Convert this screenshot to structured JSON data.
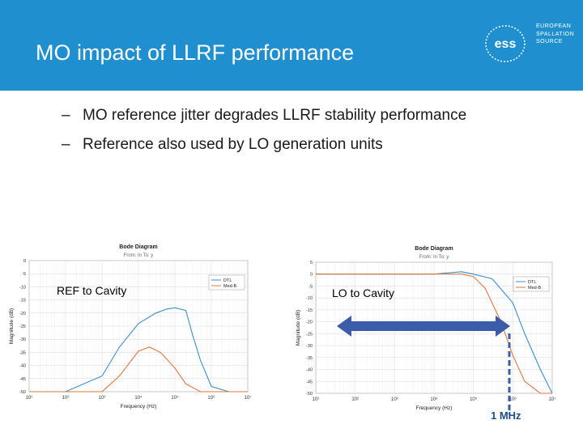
{
  "slide": {
    "title": "MO impact of LLRF performance",
    "logo_lines": [
      "EUROPEAN",
      "SPALLATION",
      "SOURCE"
    ],
    "logo_mark": "ess",
    "bullets": [
      "MO reference jitter degrades LLRF stability performance",
      "Reference also used by LO generation units"
    ],
    "bullet_marker": "–",
    "marker_label": "1 MHz"
  },
  "plots": [
    {
      "title": "Bode Diagram",
      "subtitle": "From: In  To: y",
      "ylabel": "Magnitude (dB)",
      "xlabel": "Frequency (Hz)",
      "annotation": "REF to Cavity",
      "legend": [
        "DTL",
        "Med-B"
      ],
      "yticks": [
        "0",
        "-5",
        "-10",
        "-15",
        "-20",
        "-25",
        "-30",
        "-35",
        "-40",
        "-45",
        "-50"
      ],
      "xticks": [
        "10¹",
        "10²",
        "10³",
        "10⁴",
        "10⁵",
        "10⁶",
        "10⁷"
      ]
    },
    {
      "title": "Bode Diagram",
      "subtitle": "From: In  To: y",
      "ylabel": "Magnitude (dB)",
      "xlabel": "Frequency (Hz)",
      "annotation": "LO to Cavity",
      "legend": [
        "DTL",
        "Med-B"
      ],
      "yticks": [
        "5",
        "0",
        "-5",
        "-10",
        "-15",
        "-20",
        "-25",
        "-30",
        "-35",
        "-40",
        "-45",
        "-50"
      ],
      "xticks": [
        "10¹",
        "10²",
        "10³",
        "10⁴",
        "10⁵",
        "10⁶",
        "10⁷"
      ]
    }
  ],
  "chart_data": [
    {
      "type": "line",
      "title": "Bode Diagram",
      "xlabel": "Frequency (Hz)",
      "ylabel": "Magnitude (dB)",
      "xscale": "log",
      "xlim": [
        10,
        10000000
      ],
      "ylim": [
        -50,
        0
      ],
      "series": [
        {
          "name": "DTL",
          "color": "#3a8fd0",
          "x": [
            10,
            100,
            1000,
            3000,
            10000,
            30000,
            60000,
            100000,
            200000,
            300000,
            500000,
            1000000,
            3000000,
            10000000
          ],
          "y": [
            -50,
            -50,
            -44,
            -33,
            -24,
            -20,
            -18.5,
            -18,
            -19,
            -28,
            -38,
            -48,
            -50,
            -50
          ]
        },
        {
          "name": "Med-B",
          "color": "#e0763a",
          "x": [
            10,
            100,
            1000,
            3000,
            10000,
            20000,
            40000,
            100000,
            200000,
            500000,
            1000000,
            10000000
          ],
          "y": [
            -50,
            -50,
            -50,
            -44,
            -34.5,
            -33,
            -35,
            -41,
            -47,
            -50,
            -50,
            -50
          ]
        }
      ]
    },
    {
      "type": "line",
      "title": "Bode Diagram",
      "xlabel": "Frequency (Hz)",
      "ylabel": "Magnitude (dB)",
      "xscale": "log",
      "xlim": [
        10,
        10000000
      ],
      "ylim": [
        -50,
        5
      ],
      "series": [
        {
          "name": "DTL",
          "color": "#3a8fd0",
          "x": [
            10,
            1000,
            10000,
            50000,
            100000,
            300000,
            1000000,
            2000000,
            5000000,
            10000000
          ],
          "y": [
            0,
            0,
            0,
            1,
            0,
            -2,
            -12,
            -25,
            -40,
            -50
          ]
        },
        {
          "name": "Med-B",
          "color": "#e0763a",
          "x": [
            10,
            1000,
            10000,
            50000,
            100000,
            200000,
            500000,
            1000000,
            2000000,
            5000000,
            10000000
          ],
          "y": [
            0,
            0,
            0,
            0,
            -1,
            -6,
            -20,
            -34,
            -45,
            -50,
            -50
          ]
        }
      ]
    }
  ]
}
